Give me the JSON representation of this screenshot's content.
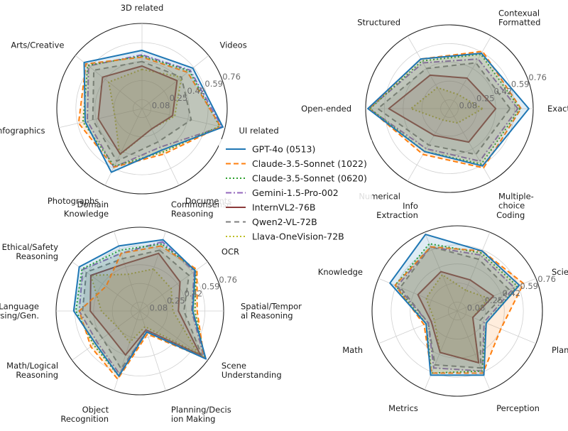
{
  "legend": [
    "GPT-4o (0513)",
    "Claude-3.5-Sonnet (1022)",
    "Claude-3.5-Sonnet (0620)",
    "Gemini-1.5-Pro-002",
    "InternVL2-76B",
    "Qwen2-VL-72B",
    "Llava-OneVision-72B"
  ],
  "series_colors": [
    "#1f77b4",
    "#ff7f0e",
    "#2ca02c",
    "#9467bd",
    "#8c3b3b",
    "#7f7f7f",
    "#bcbd22"
  ],
  "series_dash": [
    "none",
    "7,4",
    "2,3",
    "8,3,2,3",
    "none",
    "7,5",
    "2,3"
  ],
  "chart_data": [
    {
      "type": "radar",
      "rmax": 0.76,
      "ticks": [
        0.08,
        0.25,
        0.42,
        0.59,
        0.76
      ],
      "tick_labels": [
        "0.08",
        "0.25",
        "0.42",
        "0.59",
        "0.76"
      ],
      "categories": [
        "3D related",
        "Arts/Creative",
        "Infographics",
        "Photographs",
        "Documents",
        "UI related",
        "Videos"
      ],
      "series": [
        {
          "name": "GPT-4o (0513)",
          "values": [
            0.52,
            0.66,
            0.52,
            0.63,
            0.41,
            0.74,
            0.58
          ]
        },
        {
          "name": "Claude-3.5-Sonnet (1022)",
          "values": [
            0.46,
            0.64,
            0.58,
            0.58,
            0.45,
            0.72,
            0.52
          ]
        },
        {
          "name": "Claude-3.5-Sonnet (0620)",
          "values": [
            0.47,
            0.62,
            0.54,
            0.57,
            0.43,
            0.71,
            0.54
          ]
        },
        {
          "name": "Gemini-1.5-Pro-002",
          "values": [
            0.48,
            0.61,
            0.5,
            0.58,
            0.38,
            0.73,
            0.55
          ]
        },
        {
          "name": "InternVL2-76B",
          "values": [
            0.38,
            0.45,
            0.4,
            0.45,
            0.2,
            0.28,
            0.4
          ]
        },
        {
          "name": "Qwen2-VL-72B",
          "values": [
            0.42,
            0.55,
            0.45,
            0.52,
            0.33,
            0.45,
            0.45
          ]
        },
        {
          "name": "Llava-OneVision-72B",
          "values": [
            0.35,
            0.38,
            0.25,
            0.46,
            0.2,
            0.3,
            0.45
          ]
        }
      ]
    },
    {
      "type": "radar",
      "rmax": 0.76,
      "ticks": [
        0.08,
        0.25,
        0.42,
        0.59,
        0.76
      ],
      "tick_labels": [
        "0.08",
        "0.25",
        "0.42",
        "0.59",
        "0.76"
      ],
      "categories": [
        "Exact",
        "Contexual\nFormatted",
        "Structured",
        "Open-ended",
        "Numerical",
        "Multiple-\nchoice"
      ],
      "series": [
        {
          "name": "GPT-4o (0513)",
          "values": [
            0.72,
            0.58,
            0.52,
            0.74,
            0.45,
            0.6
          ]
        },
        {
          "name": "Claude-3.5-Sonnet (1022)",
          "values": [
            0.65,
            0.6,
            0.52,
            0.73,
            0.48,
            0.62
          ]
        },
        {
          "name": "Claude-3.5-Sonnet (0620)",
          "values": [
            0.64,
            0.57,
            0.5,
            0.72,
            0.45,
            0.58
          ]
        },
        {
          "name": "Gemini-1.5-Pro-002",
          "values": [
            0.62,
            0.52,
            0.48,
            0.73,
            0.42,
            0.55
          ]
        },
        {
          "name": "InternVL2-76B",
          "values": [
            0.42,
            0.32,
            0.35,
            0.55,
            0.28,
            0.35
          ]
        },
        {
          "name": "Qwen2-VL-72B",
          "values": [
            0.55,
            0.48,
            0.42,
            0.65,
            0.38,
            0.48
          ]
        },
        {
          "name": "Llava-OneVision-72B",
          "values": [
            0.3,
            0.15,
            0.22,
            0.35,
            0.12,
            0.15
          ]
        }
      ]
    },
    {
      "type": "radar",
      "rmax": 0.76,
      "ticks": [
        0.08,
        0.25,
        0.42,
        0.59,
        0.76
      ],
      "tick_labels": [
        "0.08",
        "0.25",
        "0.42",
        "0.59",
        "0.76"
      ],
      "categories": [
        "Commonsense\nReasoning",
        "Domain\nKnowledge",
        "Ethical/Safety\nReasoning",
        "Language\nParsing/Gen.",
        "Math/Logical\nReasoning",
        "Object\nRecognition",
        "Planning/Decis\nion Making",
        "Scene\nUnderstanding",
        "Spatial/Tempor\nal Reasoning",
        "OCR"
      ],
      "series": [
        {
          "name": "GPT-4o (0513)",
          "values": [
            0.68,
            0.62,
            0.68,
            0.6,
            0.5,
            0.62,
            0.2,
            0.74,
            0.48,
            0.62
          ]
        },
        {
          "name": "Claude-3.5-Sonnet (1022)",
          "values": [
            0.62,
            0.55,
            0.38,
            0.55,
            0.55,
            0.65,
            0.22,
            0.72,
            0.52,
            0.64
          ]
        },
        {
          "name": "Claude-3.5-Sonnet (0620)",
          "values": [
            0.64,
            0.58,
            0.65,
            0.58,
            0.52,
            0.62,
            0.2,
            0.73,
            0.5,
            0.63
          ]
        },
        {
          "name": "Gemini-1.5-Pro-002",
          "values": [
            0.66,
            0.55,
            0.64,
            0.55,
            0.48,
            0.6,
            0.19,
            0.72,
            0.47,
            0.61
          ]
        },
        {
          "name": "InternVL2-76B",
          "values": [
            0.55,
            0.45,
            0.55,
            0.45,
            0.35,
            0.42,
            0.18,
            0.68,
            0.35,
            0.45
          ]
        },
        {
          "name": "Qwen2-VL-72B",
          "values": [
            0.58,
            0.5,
            0.6,
            0.52,
            0.42,
            0.55,
            0.2,
            0.7,
            0.4,
            0.55
          ]
        },
        {
          "name": "Llava-OneVision-72B",
          "values": [
            0.4,
            0.35,
            0.55,
            0.35,
            0.25,
            0.3,
            0.15,
            0.65,
            0.3,
            0.35
          ]
        }
      ]
    },
    {
      "type": "radar",
      "rmax": 0.76,
      "ticks": [
        0.08,
        0.25,
        0.42,
        0.59,
        0.76
      ],
      "tick_labels": [
        "0.08",
        "0.25",
        "0.42",
        "0.59",
        "0.76"
      ],
      "categories": [
        "Coding",
        "Info\nExtraction",
        "Knowledge",
        "Math",
        "Metrics",
        "Perception",
        "Planning",
        "Science"
      ],
      "series": [
        {
          "name": "GPT-4o (0513)",
          "values": [
            0.58,
            0.74,
            0.65,
            0.3,
            0.62,
            0.62,
            0.28,
            0.6
          ]
        },
        {
          "name": "Claude-3.5-Sonnet (1022)",
          "values": [
            0.58,
            0.62,
            0.6,
            0.32,
            0.6,
            0.6,
            0.42,
            0.64
          ]
        },
        {
          "name": "Claude-3.5-Sonnet (0620)",
          "values": [
            0.56,
            0.65,
            0.6,
            0.3,
            0.6,
            0.58,
            0.28,
            0.58
          ]
        },
        {
          "name": "Gemini-1.5-Pro-002",
          "values": [
            0.54,
            0.62,
            0.58,
            0.28,
            0.55,
            0.58,
            0.26,
            0.55
          ]
        },
        {
          "name": "InternVL2-76B",
          "values": [
            0.3,
            0.38,
            0.38,
            0.25,
            0.4,
            0.5,
            0.15,
            0.35
          ]
        },
        {
          "name": "Qwen2-VL-72B",
          "values": [
            0.5,
            0.62,
            0.55,
            0.28,
            0.52,
            0.55,
            0.22,
            0.5
          ]
        },
        {
          "name": "Llava-OneVision-72B",
          "values": [
            0.2,
            0.35,
            0.3,
            0.22,
            0.4,
            0.5,
            0.15,
            0.3
          ]
        }
      ]
    }
  ]
}
